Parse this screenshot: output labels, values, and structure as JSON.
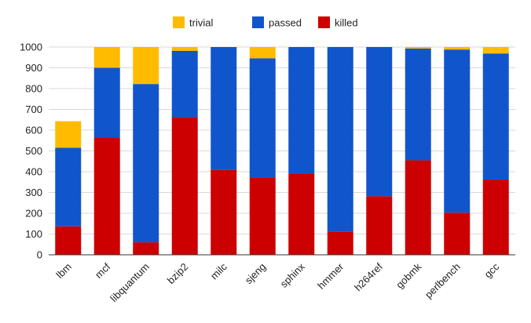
{
  "chart_data": {
    "type": "bar",
    "stacked": true,
    "categories": [
      "lbm",
      "mcf",
      "libquantum",
      "bzip2",
      "milc",
      "sjeng",
      "sphinx",
      "hmmer",
      "h264ref",
      "gobmk",
      "perlbench",
      "gcc"
    ],
    "series": [
      {
        "name": "killed",
        "color": "#cc0000",
        "values": [
          137,
          564,
          60,
          662,
          408,
          373,
          392,
          112,
          282,
          455,
          203,
          362
        ]
      },
      {
        "name": "passed",
        "color": "#1155cc",
        "values": [
          378,
          336,
          762,
          320,
          592,
          573,
          608,
          888,
          718,
          538,
          785,
          607
        ]
      },
      {
        "name": "trivial",
        "color": "#ffbb00",
        "values": [
          128,
          100,
          178,
          18,
          0,
          54,
          0,
          0,
          0,
          7,
          12,
          31
        ]
      }
    ],
    "legend_order": [
      "trivial",
      "passed",
      "killed"
    ],
    "legend_position": "top-center",
    "ylim": [
      0,
      1000
    ],
    "yticks": [
      "0",
      "100",
      "200",
      "300",
      "400",
      "500",
      "600",
      "700",
      "800",
      "900",
      "1000"
    ],
    "grid": true,
    "title": "",
    "xlabel": "",
    "ylabel": ""
  }
}
